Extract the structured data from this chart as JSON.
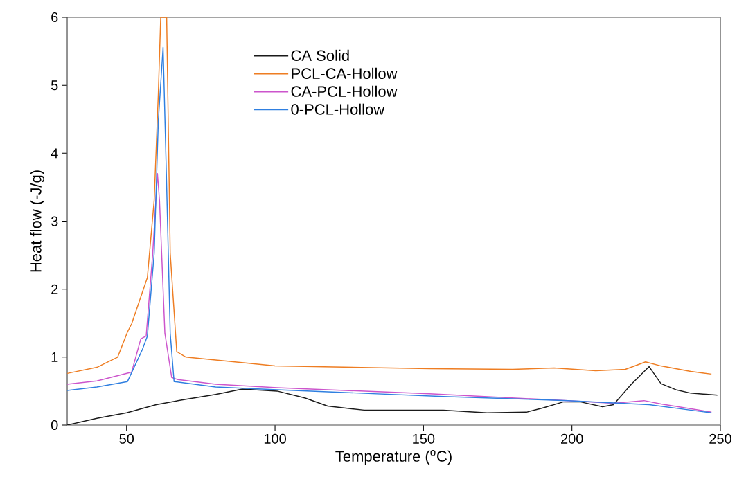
{
  "chart_data": {
    "type": "line",
    "xlabel": "Temperature ($^{o}$C)",
    "ylabel": "Heat flow (-J/g)",
    "xlim": [
      30,
      250
    ],
    "ylim": [
      0,
      6
    ],
    "xticks": [
      50,
      100,
      150,
      200,
      250
    ],
    "yticks": [
      0,
      1,
      2,
      3,
      4,
      5,
      6
    ],
    "grid": false,
    "legend": "top",
    "marker": "none",
    "line_style": "solid",
    "series": [
      {
        "name": "CA Solid",
        "color": "#1a1a1a",
        "x": [
          30,
          40,
          50,
          60,
          70,
          80,
          89,
          100.7,
          110,
          117.7,
          130,
          156.7,
          171.4,
          184.7,
          190,
          197,
          203,
          210.3,
          214,
          220,
          226,
          230,
          235,
          240,
          249
        ],
        "values": [
          0.0,
          0.1,
          0.18,
          0.3,
          0.38,
          0.45,
          0.53,
          0.5,
          0.4,
          0.28,
          0.22,
          0.22,
          0.18,
          0.19,
          0.25,
          0.34,
          0.34,
          0.27,
          0.3,
          0.6,
          0.86,
          0.61,
          0.52,
          0.47,
          0.44
        ]
      },
      {
        "name": "PCL-CA-Hollow",
        "color": "#ee7d22",
        "x": [
          30,
          40,
          47,
          50.3,
          51.7,
          57,
          59.3,
          60.7,
          61.5,
          63.5,
          64.7,
          66.9,
          70,
          100,
          152,
          180,
          194,
          208,
          218,
          224.8,
          230,
          240,
          247
        ],
        "values": [
          0.76,
          0.85,
          1.0,
          1.37,
          1.49,
          2.17,
          3.31,
          4.88,
          6,
          6,
          2.53,
          1.08,
          1.0,
          0.87,
          0.83,
          0.82,
          0.84,
          0.8,
          0.82,
          0.93,
          0.87,
          0.79,
          0.75
        ]
      },
      {
        "name": "CA-PCL-Hollow",
        "color": "#cc55cc",
        "x": [
          30,
          40,
          51.7,
          54.8,
          56.6,
          58.8,
          60.4,
          61.1,
          62.9,
          65.2,
          67.3,
          80,
          100.7,
          152,
          198.7,
          214,
          224.3,
          230,
          247
        ],
        "values": [
          0.6,
          0.65,
          0.78,
          1.27,
          1.31,
          2.52,
          3.7,
          3.3,
          1.35,
          0.7,
          0.67,
          0.6,
          0.55,
          0.46,
          0.36,
          0.32,
          0.36,
          0.31,
          0.19
        ]
      },
      {
        "name": "0-PCL-Hollow",
        "color": "#2f7fe0",
        "x": [
          30,
          40,
          50.3,
          55.3,
          57,
          59.3,
          60.7,
          62.3,
          63.4,
          64.7,
          66,
          80,
          100.7,
          156.7,
          198.7,
          226,
          247
        ],
        "values": [
          0.51,
          0.56,
          0.64,
          1.11,
          1.31,
          2.53,
          4.48,
          5.56,
          3.7,
          1.35,
          0.64,
          0.56,
          0.52,
          0.42,
          0.36,
          0.3,
          0.18
        ]
      }
    ]
  }
}
